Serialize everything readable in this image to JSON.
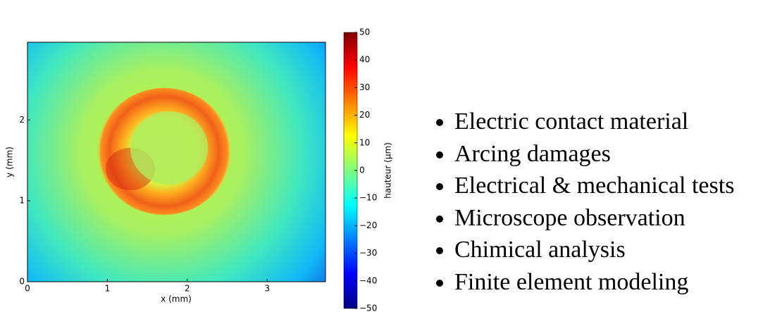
{
  "chart_data": {
    "type": "heatmap",
    "x_label": "x (mm)",
    "y_label": "y (mm)",
    "xlim": [
      0,
      3.73
    ],
    "ylim": [
      0,
      2.96
    ],
    "xticks": [
      0,
      1,
      2,
      3
    ],
    "yticks": [
      0,
      1,
      2
    ],
    "colorbar": {
      "label": "hauteur (µm)",
      "lim": [
        -50,
        50
      ],
      "ticks": [
        50,
        40,
        30,
        20,
        10,
        0,
        {
          "value": -10,
          "label": "−10"
        },
        {
          "value": -20,
          "label": "−20"
        },
        {
          "value": -30,
          "label": "−30"
        },
        {
          "value": -40,
          "label": "−40"
        },
        {
          "value": -50,
          "label": "−50"
        }
      ]
    }
  },
  "bullets": [
    "Electric contact material",
    "Arcing damages",
    "Electrical & mechanical tests",
    "Microscope observation",
    "Chimical analysis",
    "Finite element modeling"
  ]
}
